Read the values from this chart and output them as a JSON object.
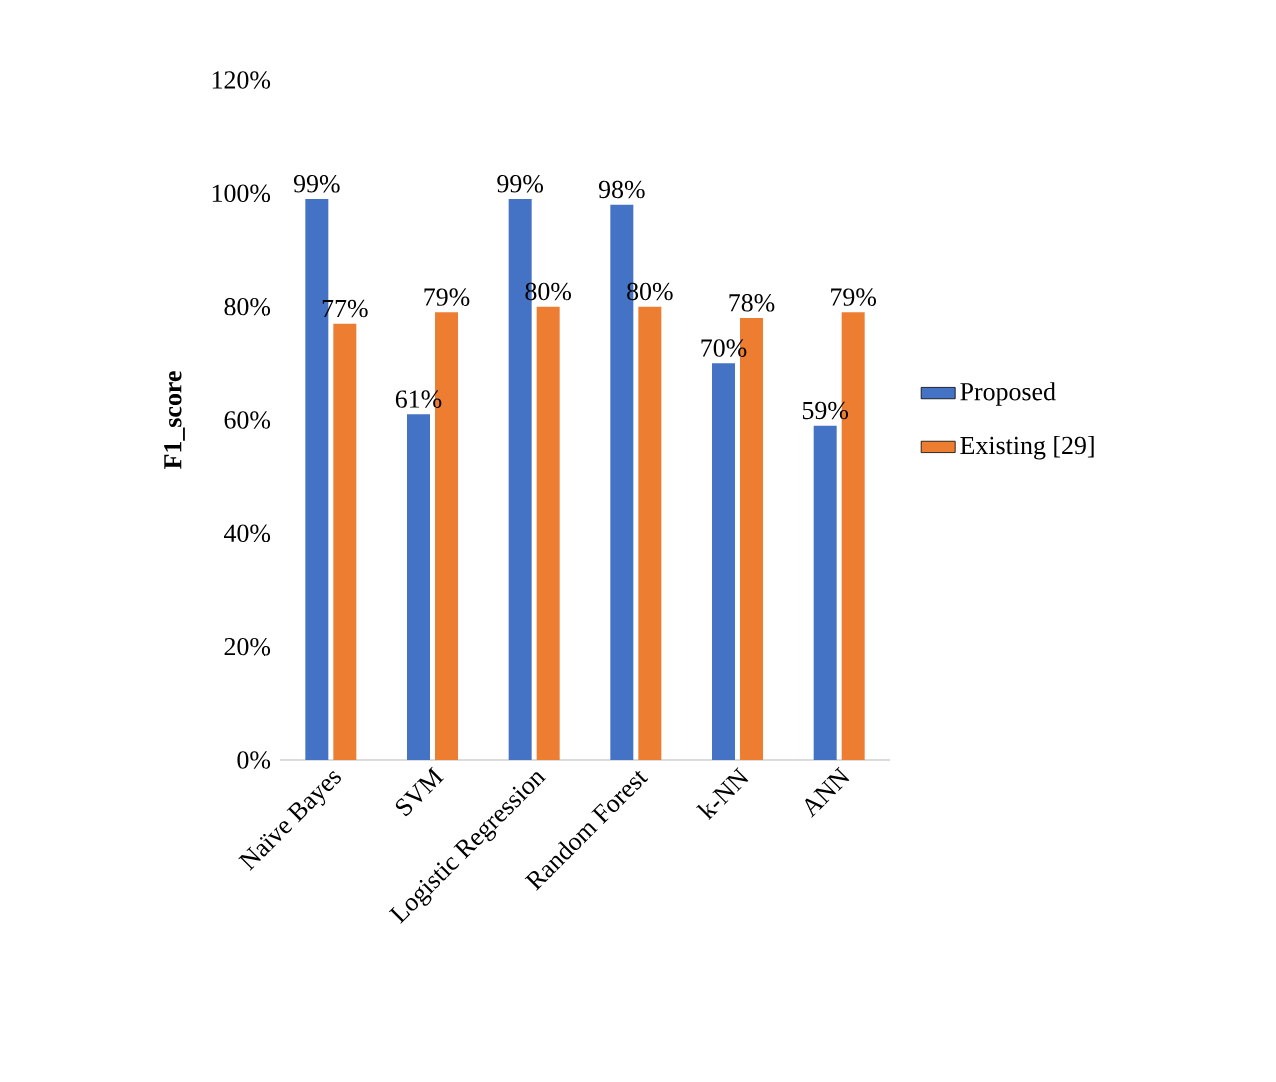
{
  "chart_data": {
    "type": "bar",
    "ylabel": "F1_score",
    "categories": [
      "Naïve Bayes",
      "SVM",
      "Logistic Regression",
      "Random Forest",
      "k-NN",
      "ANN"
    ],
    "series": [
      {
        "name": "Proposed",
        "color": "#4472c4",
        "values": [
          99,
          61,
          99,
          98,
          70,
          59
        ],
        "value_labels": [
          "99%",
          "61%",
          "99%",
          "98%",
          "70%",
          "59%"
        ]
      },
      {
        "name": "Existing [29]",
        "color": "#ed7d31",
        "values": [
          77,
          79,
          80,
          80,
          78,
          79
        ],
        "value_labels": [
          "77%",
          "79%",
          "80%",
          "80%",
          "78%",
          "79%"
        ]
      }
    ],
    "ylim": [
      0,
      120
    ],
    "yticks": [
      {
        "value": 0,
        "label": "0%"
      },
      {
        "value": 20,
        "label": "20%"
      },
      {
        "value": 40,
        "label": "40%"
      },
      {
        "value": 60,
        "label": "60%"
      },
      {
        "value": 80,
        "label": "80%"
      },
      {
        "value": 100,
        "label": "100%"
      },
      {
        "value": 120,
        "label": "120%"
      }
    ],
    "legend": "right"
  }
}
